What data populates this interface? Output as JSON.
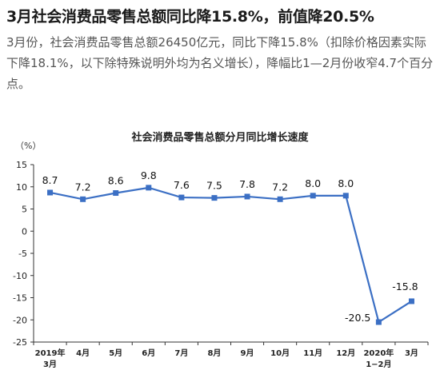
{
  "article": {
    "headline": "3月社会消费品零售总额同比降15.8%，前值降20.5%",
    "summary": "3月份，社会消费品零售总额26450亿元，同比下降15.8%（扣除价格因素实际下降18.1%，以下除特殊说明外均为名义增长），降幅比1—2月份收窄4.7个百分点。"
  },
  "chart_data": {
    "type": "line",
    "title": "社会消费品零售总额分月同比增长速度",
    "ylabel": "（%）",
    "xlabel": "",
    "ylim": [
      -25,
      15
    ],
    "yticks": [
      15,
      10,
      5,
      0,
      -5,
      -10,
      -15,
      -20,
      -25
    ],
    "grid": false,
    "categories": [
      [
        "2019年",
        "3月"
      ],
      [
        "4月"
      ],
      [
        "5月"
      ],
      [
        "6月"
      ],
      [
        "7月"
      ],
      [
        "8月"
      ],
      [
        "9月"
      ],
      [
        "10月"
      ],
      [
        "11月"
      ],
      [
        "12月"
      ],
      [
        "2020年",
        "1−2月"
      ],
      [
        "3月"
      ]
    ],
    "series": [
      {
        "values": [
          8.7,
          7.2,
          8.6,
          9.8,
          7.6,
          7.5,
          7.8,
          7.2,
          8.0,
          8.0,
          -20.5,
          -15.8
        ],
        "labels": [
          "8.7",
          "7.2",
          "8.6",
          "9.8",
          "7.6",
          "7.5",
          "7.8",
          "7.2",
          "8.0",
          "8.0",
          "-20.5",
          "-15.8"
        ],
        "color": "#3b6fc4"
      }
    ]
  }
}
